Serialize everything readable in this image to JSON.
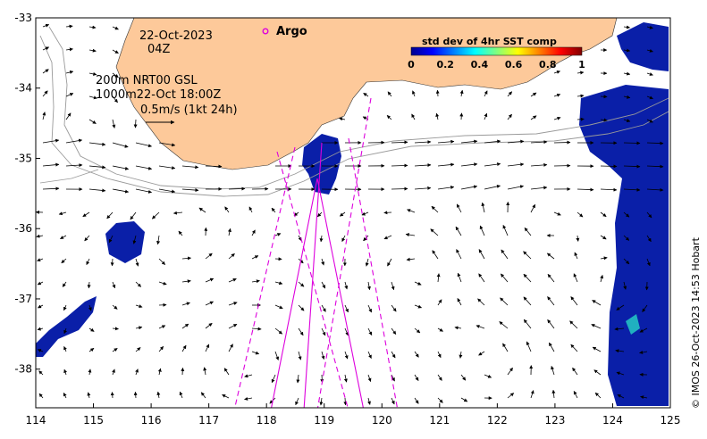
{
  "header": {
    "date": "22-Oct-2023",
    "time": "04Z"
  },
  "info": {
    "depth_line": "200m  NRT00 GSL",
    "contour_line": "1000m22-Oct 18:00Z",
    "scale_label": "0.5m/s (1kt 24h)"
  },
  "legend": {
    "argo_label": "Argo",
    "argo_color": "#dd00dd"
  },
  "colorbar": {
    "title": "std dev of 4hr SST comp",
    "ticks": [
      "0",
      "0.2",
      "0.4",
      "0.6",
      "0.8",
      "1"
    ],
    "tick_values": [
      0,
      0.2,
      0.4,
      0.6,
      0.8,
      1
    ],
    "colors": [
      "#00008f",
      "#0000ff",
      "#0080ff",
      "#00ffff",
      "#80ff80",
      "#ffff00",
      "#ff8000",
      "#ff0000",
      "#800000"
    ]
  },
  "axes": {
    "lon_ticks": [
      "114",
      "115",
      "116",
      "117",
      "118",
      "119",
      "120",
      "121",
      "122",
      "123",
      "124",
      "125"
    ],
    "lon_values": [
      114,
      115,
      116,
      117,
      118,
      119,
      120,
      121,
      122,
      123,
      124,
      125
    ],
    "lat_ticks": [
      "-33",
      "-34",
      "-35",
      "-36",
      "-37",
      "-38"
    ],
    "lat_values": [
      -33,
      -34,
      -35,
      -36,
      -37,
      -38
    ],
    "lon_range": [
      114,
      125
    ],
    "lat_range": [
      -38.55,
      -33
    ]
  },
  "credit": "© IMOS 26-Oct-2023 14:53 Hobart",
  "colors": {
    "land": "#fdc99a",
    "track": "#dd00dd",
    "vector": "#000000"
  }
}
